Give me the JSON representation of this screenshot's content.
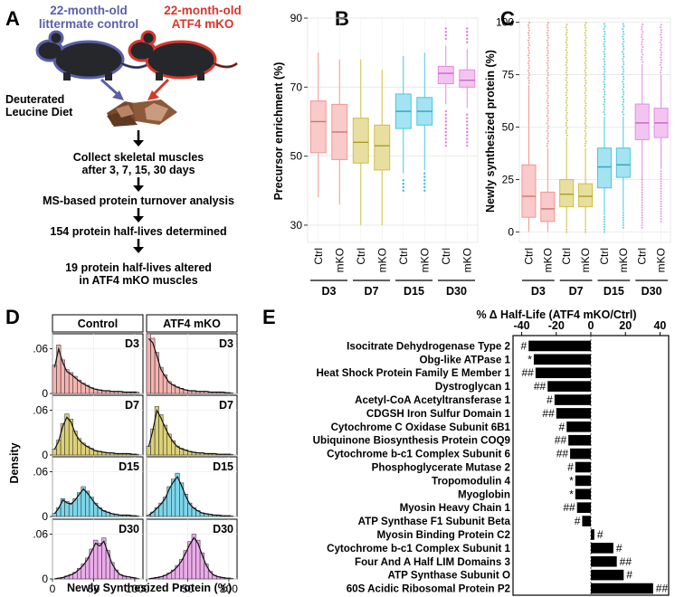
{
  "panels": {
    "A": "A",
    "B": "B",
    "C": "C",
    "D": "D",
    "E": "E"
  },
  "colors": {
    "D3": "#f08a86",
    "D7": "#c9b82c",
    "D15": "#35c0df",
    "D30": "#e27de0",
    "control_text": "#5b5fa8",
    "mko_text": "#d9372b",
    "bar": "#000000"
  },
  "panelA": {
    "control_label": [
      "22-month-old",
      "littermate control"
    ],
    "mko_label": [
      "22-month-old",
      "ATF4 mKO"
    ],
    "diet_label": [
      "Deuterated",
      "Leucine Diet"
    ],
    "steps": [
      [
        "Collect skeletal muscles",
        "after 3, 7, 15, 30 days"
      ],
      [
        "MS-based protein turnover analysis"
      ],
      [
        "154 protein half-lives determined"
      ],
      [
        "19 protein half-lives altered",
        "in ATF4 mKO muscles"
      ]
    ]
  },
  "chart_data": [
    {
      "panel": "B",
      "type": "box",
      "ylabel": "Precursor enrichment (%)",
      "ylim": [
        25,
        90
      ],
      "yticks": [
        30,
        50,
        70,
        90
      ],
      "groups": [
        "D3",
        "D7",
        "D15",
        "D30"
      ],
      "conditions": [
        "Ctrl",
        "mKO"
      ],
      "boxes": [
        {
          "day": "D3",
          "cond": "Ctrl",
          "q1": 51,
          "median": 60,
          "q3": 66,
          "lo": 38,
          "hi": 80,
          "outliers": []
        },
        {
          "day": "D3",
          "cond": "mKO",
          "q1": 49,
          "median": 57,
          "q3": 65,
          "lo": 36,
          "hi": 78,
          "outliers": []
        },
        {
          "day": "D7",
          "cond": "Ctrl",
          "q1": 48,
          "median": 54,
          "q3": 61,
          "lo": 30,
          "hi": 78,
          "outliers": []
        },
        {
          "day": "D7",
          "cond": "mKO",
          "q1": 46,
          "median": 53,
          "q3": 59,
          "lo": 30,
          "hi": 75,
          "outliers": []
        },
        {
          "day": "D15",
          "cond": "Ctrl",
          "q1": 58,
          "median": 63,
          "q3": 68,
          "lo": 45,
          "hi": 79,
          "outliers": [
            43,
            42,
            41,
            40
          ]
        },
        {
          "day": "D15",
          "cond": "mKO",
          "q1": 59,
          "median": 63,
          "q3": 67,
          "lo": 46,
          "hi": 80,
          "outliers": [
            45,
            44,
            43,
            42,
            41,
            40
          ]
        },
        {
          "day": "D30",
          "cond": "Ctrl",
          "q1": 71,
          "median": 74,
          "q3": 76,
          "lo": 65,
          "hi": 82,
          "outliers": [
            63,
            62,
            61,
            60,
            59,
            58,
            57,
            56,
            55,
            54,
            53,
            84,
            85,
            86,
            87
          ]
        },
        {
          "day": "D30",
          "cond": "mKO",
          "q1": 70,
          "median": 72,
          "q3": 75,
          "lo": 64,
          "hi": 81,
          "outliers": [
            62,
            61,
            60,
            59,
            58,
            57,
            56,
            55,
            54,
            53,
            83,
            84,
            85,
            86,
            87
          ]
        }
      ]
    },
    {
      "panel": "C",
      "type": "box",
      "ylabel": "Newly synthesized protein (%)",
      "ylim": [
        -5,
        102
      ],
      "yticks": [
        0,
        25,
        50,
        75,
        100
      ],
      "groups": [
        "D3",
        "D7",
        "D15",
        "D30"
      ],
      "conditions": [
        "Ctrl",
        "mKO"
      ],
      "boxes": [
        {
          "day": "D3",
          "cond": "Ctrl",
          "q1": 7,
          "median": 17,
          "q3": 32,
          "lo": 0,
          "hi": 70,
          "out_lo": 0,
          "out_hi": 100
        },
        {
          "day": "D3",
          "cond": "mKO",
          "q1": 5,
          "median": 11,
          "q3": 19,
          "lo": 0,
          "hi": 40,
          "out_lo": 0,
          "out_hi": 100
        },
        {
          "day": "D7",
          "cond": "Ctrl",
          "q1": 12,
          "median": 18,
          "q3": 25,
          "lo": 2,
          "hi": 45,
          "out_lo": 0,
          "out_hi": 100
        },
        {
          "day": "D7",
          "cond": "mKO",
          "q1": 12,
          "median": 17,
          "q3": 23,
          "lo": 2,
          "hi": 40,
          "out_lo": 0,
          "out_hi": 100
        },
        {
          "day": "D15",
          "cond": "Ctrl",
          "q1": 21,
          "median": 31,
          "q3": 40,
          "lo": 8,
          "hi": 55,
          "out_lo": 0,
          "out_hi": 100
        },
        {
          "day": "D15",
          "cond": "mKO",
          "q1": 26,
          "median": 32,
          "q3": 40,
          "lo": 10,
          "hi": 55,
          "out_lo": 2,
          "out_hi": 100
        },
        {
          "day": "D30",
          "cond": "Ctrl",
          "q1": 44,
          "median": 52,
          "q3": 61,
          "lo": 25,
          "hi": 80,
          "out_lo": 2,
          "out_hi": 100
        },
        {
          "day": "D30",
          "cond": "mKO",
          "q1": 45,
          "median": 52,
          "q3": 59,
          "lo": 30,
          "hi": 75,
          "out_lo": 5,
          "out_hi": 100
        }
      ]
    },
    {
      "panel": "D",
      "type": "histogram-density",
      "xlabel": "Newly Synthesized Protein (%)",
      "ylabel": "Density",
      "xlim": [
        0,
        110
      ],
      "xticks": [
        0,
        50,
        100
      ],
      "ylim": [
        0,
        0.08
      ],
      "yticks": [
        0,
        0.06
      ],
      "ytick_labels": [
        "0",
        ".06"
      ],
      "columns": [
        "Control",
        "ATF4 mKO"
      ],
      "rows": [
        "D3",
        "D7",
        "D15",
        "D30"
      ],
      "bin_width": 5,
      "bin_centers": [
        2.5,
        7.5,
        12.5,
        17.5,
        22.5,
        27.5,
        32.5,
        37.5,
        42.5,
        47.5,
        52.5,
        57.5,
        62.5,
        67.5,
        72.5,
        77.5,
        82.5,
        87.5,
        92.5,
        97.5,
        102.5
      ],
      "densities": {
        "Control": {
          "D3": [
            0.038,
            0.065,
            0.045,
            0.032,
            0.028,
            0.023,
            0.018,
            0.014,
            0.011,
            0.008,
            0.006,
            0.005,
            0.004,
            0.004,
            0.003,
            0.003,
            0.003,
            0.002,
            0.002,
            0.002,
            0.002
          ],
          "D7": [
            0.008,
            0.02,
            0.042,
            0.055,
            0.048,
            0.032,
            0.022,
            0.016,
            0.012,
            0.009,
            0.006,
            0.005,
            0.004,
            0.003,
            0.003,
            0.002,
            0.002,
            0.002,
            0.002,
            0.001,
            0.001
          ],
          "D15": [
            0.004,
            0.012,
            0.024,
            0.02,
            0.018,
            0.024,
            0.032,
            0.04,
            0.034,
            0.026,
            0.018,
            0.012,
            0.008,
            0.006,
            0.004,
            0.003,
            0.002,
            0.002,
            0.002,
            0.001,
            0.001
          ],
          "D30": [
            0.0,
            0.001,
            0.002,
            0.004,
            0.006,
            0.009,
            0.014,
            0.02,
            0.028,
            0.04,
            0.052,
            0.048,
            0.055,
            0.038,
            0.022,
            0.012,
            0.006,
            0.004,
            0.003,
            0.002,
            0.001
          ]
        },
        "ATF4 mKO": {
          "D3": [
            0.08,
            0.074,
            0.055,
            0.035,
            0.025,
            0.016,
            0.012,
            0.009,
            0.007,
            0.005,
            0.004,
            0.004,
            0.003,
            0.003,
            0.003,
            0.002,
            0.002,
            0.002,
            0.002,
            0.001,
            0.001
          ],
          "D7": [
            0.012,
            0.035,
            0.065,
            0.054,
            0.04,
            0.028,
            0.019,
            0.012,
            0.009,
            0.007,
            0.005,
            0.004,
            0.003,
            0.003,
            0.002,
            0.002,
            0.002,
            0.001,
            0.001,
            0.001,
            0.001
          ],
          "D15": [
            0.002,
            0.006,
            0.012,
            0.018,
            0.026,
            0.04,
            0.05,
            0.058,
            0.045,
            0.03,
            0.018,
            0.012,
            0.008,
            0.005,
            0.004,
            0.003,
            0.002,
            0.002,
            0.001,
            0.001,
            0.001
          ],
          "D30": [
            0.0,
            0.001,
            0.002,
            0.003,
            0.005,
            0.008,
            0.012,
            0.018,
            0.026,
            0.038,
            0.05,
            0.06,
            0.052,
            0.035,
            0.02,
            0.01,
            0.005,
            0.003,
            0.002,
            0.001,
            0.001
          ]
        }
      }
    },
    {
      "panel": "E",
      "type": "bar-horizontal",
      "title": "% Δ Half-Life (ATF4 mKO/Ctrl)",
      "xlim": [
        -45,
        45
      ],
      "xticks": [
        -40,
        -20,
        0,
        20,
        40
      ],
      "categories": [
        "Isocitrate Dehydrogenase Type 2",
        "Obg-like ATPase 1",
        "Heat Shock Protein Family E Member 1",
        "Dystroglycan 1",
        "Acetyl-CoA Acetyltransferase 1",
        "CDGSH Iron Sulfur Domain 1",
        "Cytochrome C Oxidase Subunit 6B1",
        "Ubiquinone Biosynthesis Protein COQ9",
        "Cytochrome b-c1 Complex Subunit 6",
        "Phosphoglycerate Mutase 2",
        "Tropomodulin 4",
        "Myoglobin",
        "Myosin Heavy Chain 1",
        "ATP Synthase F1 Subunit Beta",
        "Myosin Binding Protein C2",
        "Cytochrome b-c1 Complex Subunit 1",
        "Four And A Half LIM Domains 3",
        "ATP Synthase Subunit O",
        "60S Acidic Ribosomal Protein P2"
      ],
      "values": [
        -36,
        -33,
        -32,
        -25,
        -21,
        -20,
        -14,
        -13,
        -12,
        -9,
        -9,
        -9,
        -8,
        -5,
        2,
        13,
        15,
        19,
        36
      ],
      "significance": [
        "#",
        "*",
        "##",
        "##",
        "#",
        "##",
        "#",
        "##",
        "##",
        "#",
        "*",
        "*",
        "##",
        "#",
        "#",
        "#",
        "##",
        "#",
        "##"
      ]
    }
  ]
}
